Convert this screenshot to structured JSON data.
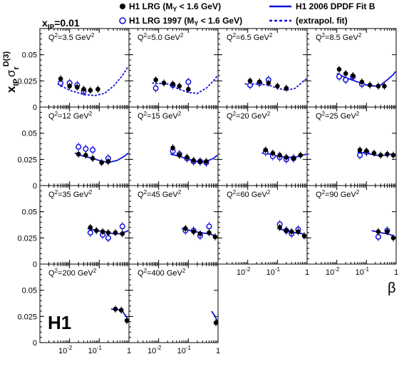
{
  "figure": {
    "xpom_label": "x",
    "xpom_sub": "IP",
    "xpom_value": "=0.01",
    "ylabel_main": "x",
    "ylabel_sub": "IP",
    "ylabel_sigma": "σ",
    "ylabel_sigma_sub": "r",
    "ylabel_sup": "D(3)",
    "xlabel": "β",
    "logo": "H1"
  },
  "legend": {
    "lrg": "H1 LRG (M",
    "lrg_sub": "Y",
    "lrg_tail": " < 1.6 GeV)",
    "lrg97": "H1 LRG 1997 (M",
    "lrg97_sub": "Y",
    "lrg97_tail": " < 1.6 GeV)",
    "fit": "H1 2006 DPDF Fit B",
    "extrap": "(extrapol. fit)"
  },
  "colors": {
    "fit": "#1111dd",
    "open": "#1111dd",
    "closed": "#000000"
  },
  "chart_data": {
    "type": "scatter",
    "ylim": [
      0,
      0.075
    ],
    "xlim_log": [
      0.001,
      1
    ],
    "yticks": [
      "0",
      "0.025",
      "0.05"
    ],
    "xticks": [
      "10",
      "10",
      "1"
    ],
    "xtick_exps": [
      "-2",
      "-1",
      ""
    ],
    "panels": [
      {
        "q2": "3.5",
        "closed": [
          [
            0.005,
            0.027
          ],
          [
            0.01,
            0.02
          ],
          [
            0.018,
            0.019
          ],
          [
            0.03,
            0.017
          ],
          [
            0.05,
            0.016
          ],
          [
            0.09,
            0.017
          ]
        ],
        "open": [
          [
            0.005,
            0.023
          ],
          [
            0.01,
            0.023
          ],
          [
            0.018,
            0.021
          ],
          [
            0.03,
            0.015
          ]
        ],
        "fit": [],
        "extrap": [
          [
            0.004,
            0.022
          ],
          [
            0.01,
            0.016
          ],
          [
            0.03,
            0.012
          ],
          [
            0.07,
            0.011
          ],
          [
            0.15,
            0.013
          ],
          [
            0.3,
            0.02
          ],
          [
            0.6,
            0.03
          ],
          [
            0.9,
            0.038
          ]
        ]
      },
      {
        "q2": "5.0",
        "closed": [
          [
            0.008,
            0.026
          ],
          [
            0.015,
            0.023
          ],
          [
            0.03,
            0.022
          ],
          [
            0.05,
            0.02
          ],
          [
            0.1,
            0.017
          ]
        ],
        "open": [
          [
            0.008,
            0.018
          ],
          [
            0.03,
            0.021
          ],
          [
            0.1,
            0.024
          ]
        ],
        "fit": [],
        "extrap": [
          [
            0.006,
            0.023
          ],
          [
            0.02,
            0.022
          ],
          [
            0.05,
            0.017
          ],
          [
            0.1,
            0.014
          ],
          [
            0.2,
            0.013
          ],
          [
            0.4,
            0.018
          ],
          [
            0.7,
            0.025
          ],
          [
            0.95,
            0.03
          ]
        ]
      },
      {
        "q2": "6.5",
        "closed": [
          [
            0.012,
            0.025
          ],
          [
            0.025,
            0.024
          ],
          [
            0.05,
            0.023
          ],
          [
            0.1,
            0.02
          ],
          [
            0.2,
            0.018
          ]
        ],
        "open": [
          [
            0.012,
            0.021
          ],
          [
            0.025,
            0.023
          ],
          [
            0.05,
            0.026
          ]
        ],
        "fit": [],
        "extrap": [
          [
            0.008,
            0.022
          ],
          [
            0.02,
            0.022
          ],
          [
            0.05,
            0.021
          ],
          [
            0.1,
            0.018
          ],
          [
            0.2,
            0.016
          ],
          [
            0.4,
            0.018
          ],
          [
            0.7,
            0.024
          ],
          [
            0.95,
            0.027
          ]
        ]
      },
      {
        "q2": "8.5",
        "closed": [
          [
            0.012,
            0.036
          ],
          [
            0.02,
            0.032
          ],
          [
            0.035,
            0.03
          ],
          [
            0.07,
            0.024
          ],
          [
            0.13,
            0.021
          ],
          [
            0.25,
            0.02
          ],
          [
            0.4,
            0.02
          ]
        ],
        "open": [
          [
            0.012,
            0.029
          ],
          [
            0.02,
            0.026
          ],
          [
            0.035,
            0.029
          ],
          [
            0.07,
            0.022
          ]
        ],
        "fit": [
          [
            0.01,
            0.032
          ],
          [
            0.02,
            0.028
          ],
          [
            0.05,
            0.024
          ],
          [
            0.1,
            0.021
          ],
          [
            0.2,
            0.02
          ],
          [
            0.3,
            0.021
          ],
          [
            0.5,
            0.026
          ],
          [
            0.8,
            0.031
          ],
          [
            0.95,
            0.034
          ]
        ],
        "extrap": []
      },
      {
        "q2": "12",
        "closed": [
          [
            0.02,
            0.03
          ],
          [
            0.035,
            0.029
          ],
          [
            0.06,
            0.026
          ],
          [
            0.12,
            0.022
          ],
          [
            0.2,
            0.023
          ]
        ],
        "open": [
          [
            0.02,
            0.037
          ],
          [
            0.035,
            0.035
          ],
          [
            0.06,
            0.034
          ],
          [
            0.2,
            0.026
          ]
        ],
        "fit": [
          [
            0.015,
            0.031
          ],
          [
            0.03,
            0.028
          ],
          [
            0.06,
            0.026
          ],
          [
            0.1,
            0.024
          ],
          [
            0.2,
            0.022
          ],
          [
            0.4,
            0.024
          ],
          [
            0.7,
            0.028
          ],
          [
            0.95,
            0.031
          ]
        ],
        "extrap": []
      },
      {
        "q2": "15",
        "closed": [
          [
            0.03,
            0.036
          ],
          [
            0.05,
            0.029
          ],
          [
            0.09,
            0.027
          ],
          [
            0.15,
            0.024
          ],
          [
            0.25,
            0.023
          ],
          [
            0.4,
            0.023
          ]
        ],
        "open": [
          [
            0.03,
            0.033
          ],
          [
            0.05,
            0.03
          ],
          [
            0.09,
            0.026
          ],
          [
            0.15,
            0.023
          ],
          [
            0.25,
            0.023
          ],
          [
            0.4,
            0.022
          ]
        ],
        "fit": [
          [
            0.025,
            0.03
          ],
          [
            0.05,
            0.028
          ],
          [
            0.1,
            0.025
          ],
          [
            0.2,
            0.023
          ],
          [
            0.4,
            0.023
          ],
          [
            0.7,
            0.026
          ],
          [
            0.95,
            0.029
          ]
        ],
        "extrap": []
      },
      {
        "q2": "20",
        "closed": [
          [
            0.04,
            0.034
          ],
          [
            0.07,
            0.031
          ],
          [
            0.12,
            0.029
          ],
          [
            0.2,
            0.027
          ],
          [
            0.35,
            0.026
          ],
          [
            0.6,
            0.029
          ]
        ],
        "open": [
          [
            0.04,
            0.032
          ],
          [
            0.07,
            0.028
          ],
          [
            0.12,
            0.027
          ],
          [
            0.2,
            0.025
          ],
          [
            0.35,
            0.026
          ]
        ],
        "fit": [
          [
            0.03,
            0.031
          ],
          [
            0.06,
            0.03
          ],
          [
            0.1,
            0.028
          ],
          [
            0.2,
            0.027
          ],
          [
            0.4,
            0.027
          ],
          [
            0.7,
            0.029
          ],
          [
            0.95,
            0.03
          ]
        ],
        "extrap": []
      },
      {
        "q2": "25",
        "closed": [
          [
            0.06,
            0.034
          ],
          [
            0.1,
            0.033
          ],
          [
            0.18,
            0.031
          ],
          [
            0.3,
            0.029
          ],
          [
            0.5,
            0.03
          ],
          [
            0.8,
            0.029
          ]
        ],
        "open": [
          [
            0.06,
            0.029
          ],
          [
            0.1,
            0.032
          ]
        ],
        "fit": [
          [
            0.05,
            0.032
          ],
          [
            0.1,
            0.031
          ],
          [
            0.2,
            0.029
          ],
          [
            0.4,
            0.029
          ],
          [
            0.7,
            0.03
          ],
          [
            0.95,
            0.03
          ]
        ],
        "extrap": []
      },
      {
        "q2": "35",
        "closed": [
          [
            0.05,
            0.035
          ],
          [
            0.08,
            0.032
          ],
          [
            0.13,
            0.031
          ],
          [
            0.2,
            0.03
          ],
          [
            0.35,
            0.03
          ],
          [
            0.6,
            0.029
          ]
        ],
        "open": [
          [
            0.05,
            0.03
          ],
          [
            0.13,
            0.028
          ],
          [
            0.2,
            0.025
          ],
          [
            0.6,
            0.036
          ]
        ],
        "fit": [
          [
            0.04,
            0.034
          ],
          [
            0.08,
            0.032
          ],
          [
            0.15,
            0.031
          ],
          [
            0.3,
            0.029
          ],
          [
            0.5,
            0.029
          ],
          [
            0.8,
            0.031
          ],
          [
            0.95,
            0.032
          ]
        ],
        "extrap": []
      },
      {
        "q2": "45",
        "closed": [
          [
            0.08,
            0.034
          ],
          [
            0.15,
            0.031
          ],
          [
            0.25,
            0.029
          ],
          [
            0.5,
            0.03
          ],
          [
            0.8,
            0.026
          ]
        ],
        "open": [
          [
            0.08,
            0.032
          ],
          [
            0.15,
            0.032
          ],
          [
            0.25,
            0.027
          ],
          [
            0.5,
            0.036
          ]
        ],
        "fit": [
          [
            0.06,
            0.034
          ],
          [
            0.12,
            0.032
          ],
          [
            0.25,
            0.03
          ],
          [
            0.5,
            0.029
          ],
          [
            0.8,
            0.027
          ],
          [
            0.95,
            0.025
          ]
        ],
        "extrap": []
      },
      {
        "q2": "60",
        "closed": [
          [
            0.12,
            0.035
          ],
          [
            0.2,
            0.032
          ],
          [
            0.3,
            0.031
          ],
          [
            0.5,
            0.031
          ],
          [
            0.8,
            0.027
          ]
        ],
        "open": [
          [
            0.12,
            0.038
          ],
          [
            0.2,
            0.032
          ],
          [
            0.3,
            0.029
          ],
          [
            0.5,
            0.033
          ]
        ],
        "fit": [
          [
            0.1,
            0.034
          ],
          [
            0.2,
            0.032
          ],
          [
            0.4,
            0.03
          ],
          [
            0.7,
            0.029
          ],
          [
            0.95,
            0.027
          ]
        ],
        "extrap": []
      },
      {
        "q2": "90",
        "closed": [
          [
            0.25,
            0.031
          ],
          [
            0.5,
            0.031
          ],
          [
            0.8,
            0.025
          ]
        ],
        "open": [
          [
            0.25,
            0.026
          ],
          [
            0.5,
            0.032
          ]
        ],
        "fit": [
          [
            0.15,
            0.032
          ],
          [
            0.3,
            0.03
          ],
          [
            0.5,
            0.029
          ],
          [
            0.8,
            0.027
          ],
          [
            0.95,
            0.025
          ]
        ],
        "extrap": []
      },
      {
        "q2": "200",
        "closed": [
          [
            0.35,
            0.032
          ],
          [
            0.55,
            0.031
          ],
          [
            0.85,
            0.021
          ]
        ],
        "open": [],
        "fit": [
          [
            0.25,
            0.032
          ],
          [
            0.4,
            0.032
          ],
          [
            0.6,
            0.03
          ],
          [
            0.8,
            0.025
          ],
          [
            0.95,
            0.021
          ]
        ],
        "extrap": []
      },
      {
        "q2": "400",
        "closed": [
          [
            0.85,
            0.019
          ]
        ],
        "open": [],
        "fit": [
          [
            0.6,
            0.03
          ],
          [
            0.8,
            0.025
          ],
          [
            0.95,
            0.02
          ]
        ],
        "extrap": []
      }
    ]
  }
}
